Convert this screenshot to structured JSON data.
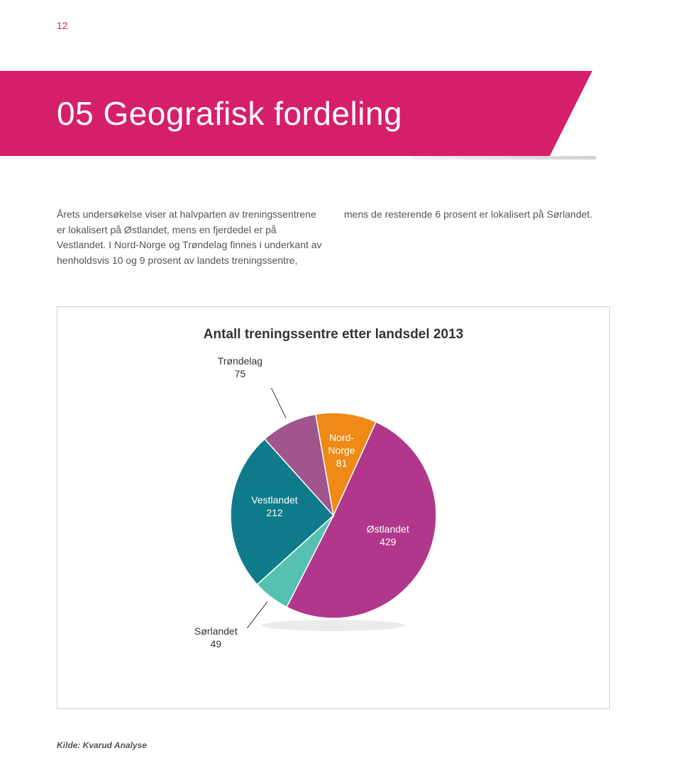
{
  "page": {
    "number": "12"
  },
  "title": "05 Geografisk fordeling",
  "body": {
    "col1": "Årets undersøkelse viser at halvparten av treningssentrene er lokalisert på Østlandet, mens en fjerdedel er på Vestlandet. I Nord-Norge og Trøndelag finnes i underkant av henholdsvis 10 og 9 prosent av landets treningssentre,",
    "col2": "mens de resterende 6 prosent er lokalisert på Sørlandet."
  },
  "chart": {
    "type": "pie",
    "title": "Antall treningssentre etter landsdel 2013",
    "background_color": "#ffffff",
    "border_color": "#d0d0d0",
    "slices": [
      {
        "label": "Nord-\nNorge",
        "value": 81,
        "color": "#ef8a17",
        "label_inside": true
      },
      {
        "label": "Østlandet",
        "value": 429,
        "color": "#b0378c",
        "label_inside": true
      },
      {
        "label": "Sørlandet",
        "value": 49,
        "color": "#57c1b1",
        "label_inside": false
      },
      {
        "label": "Vestlandet",
        "value": 212,
        "color": "#0f7b8a",
        "label_inside": true
      },
      {
        "label": "Trøndelag",
        "value": 75,
        "color": "#a0558c",
        "label_inside": false
      }
    ],
    "radius": 145,
    "start_angle_deg": -100,
    "stroke_color": "#ffffff",
    "stroke_width": 1.5,
    "label_fontsize": 14
  },
  "source": "Kilde: Kvarud Analyse"
}
